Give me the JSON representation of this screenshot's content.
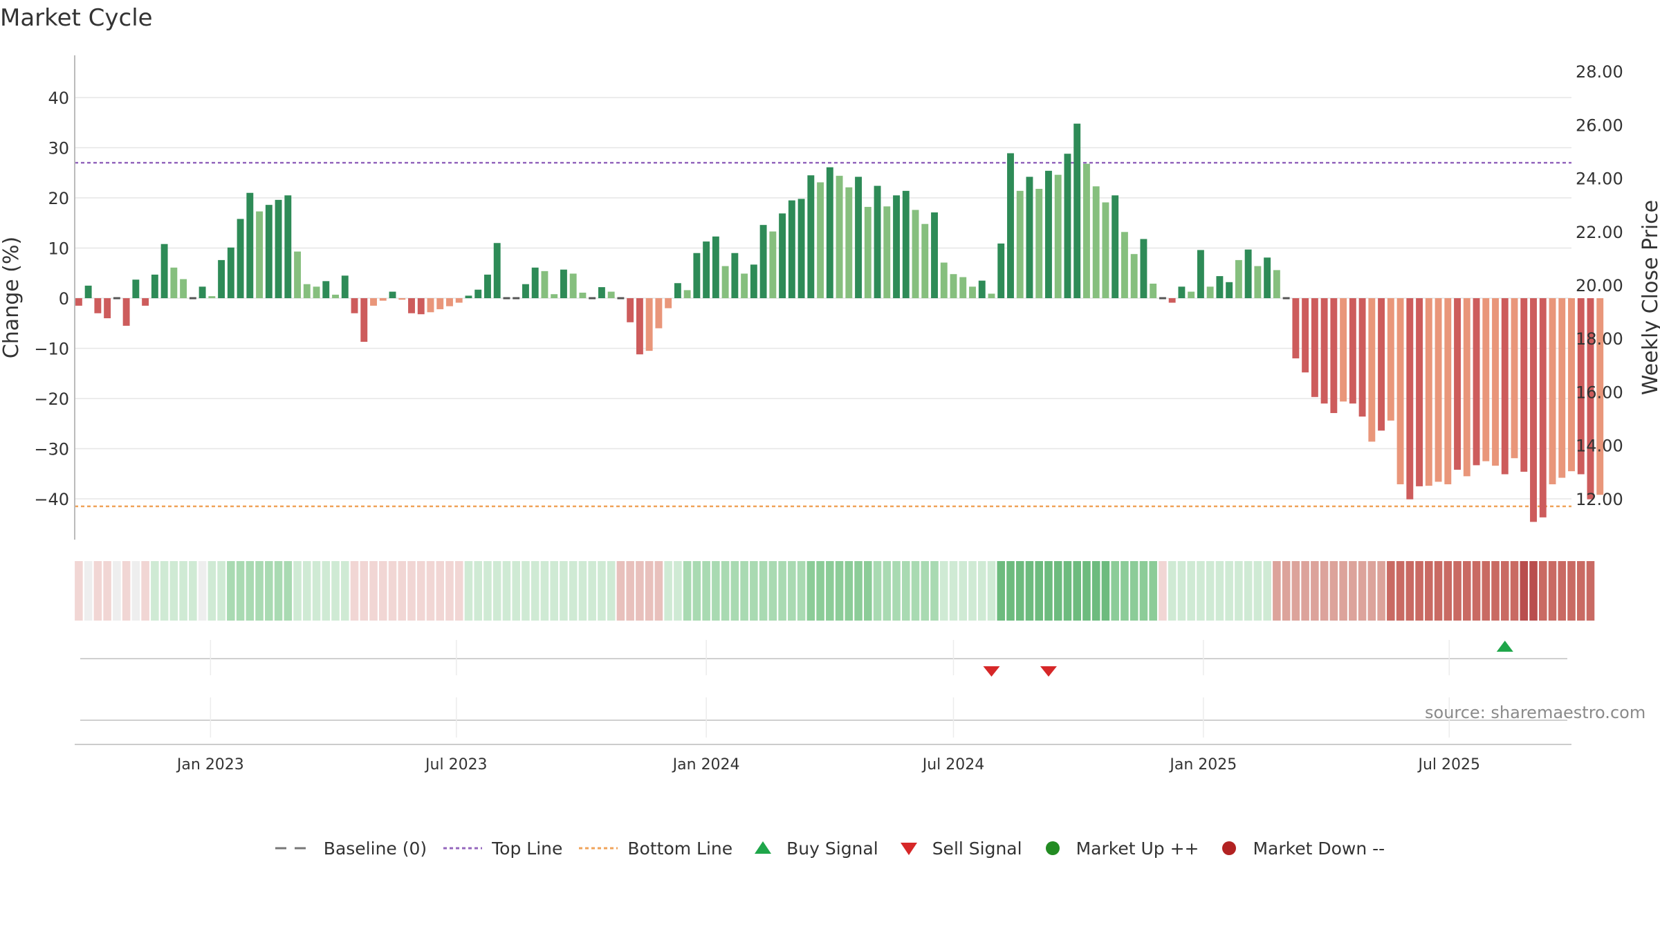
{
  "title": "Market Cycle",
  "source": "source: sharemaestro.com",
  "colors": {
    "up_strong": "#2e8b57",
    "up_light": "#86bf7e",
    "down_strong": "#cd5c5c",
    "down_light": "#e9967a",
    "top_line": "#9467bd",
    "bottom_line": "#f0a35a",
    "buy": "#1fa64a",
    "sell": "#d62728",
    "market_up": "#228b22",
    "market_down": "#b22222"
  },
  "legend": {
    "baseline": "Baseline (0)",
    "top_line": "Top Line",
    "bottom_line": "Bottom Line",
    "buy": "Buy Signal",
    "sell": "Sell Signal",
    "market_up": "Market Up ++",
    "market_down": "Market Down --"
  },
  "chart_data": {
    "type": "bar",
    "ylabel": "Change (%)",
    "y2label": "Weekly Close Price",
    "ylim": [
      -48,
      48
    ],
    "y2lim": [
      11.0,
      28.7
    ],
    "yticks": [
      "40",
      "30",
      "20",
      "10",
      "0",
      "−10",
      "−20",
      "−30",
      "−40"
    ],
    "yticks_values": [
      40,
      30,
      20,
      10,
      0,
      -10,
      -20,
      -30,
      -40
    ],
    "y2ticks": [
      "28.00",
      "26.00",
      "24.00",
      "22.00",
      "20.00",
      "18.00",
      "16.00",
      "14.00",
      "12.00"
    ],
    "y2ticks_values": [
      28,
      26,
      24,
      22,
      20,
      18,
      16,
      14,
      12
    ],
    "top_line": 27,
    "bottom_line": -41.5,
    "x_start": "2022-09-26",
    "x_step_days": 7,
    "xlim": [
      "2022-09-23",
      "2025-09-29"
    ],
    "xticks": [
      {
        "label": "Jan 2023",
        "date": "2023-01-01"
      },
      {
        "label": "Jul 2023",
        "date": "2023-07-01"
      },
      {
        "label": "Jan 2024",
        "date": "2024-01-01"
      },
      {
        "label": "Jul 2024",
        "date": "2024-07-01"
      },
      {
        "label": "Jan 2025",
        "date": "2025-01-01"
      },
      {
        "label": "Jul 2025",
        "date": "2025-07-01"
      }
    ],
    "values": [
      -1.5,
      2.5,
      -3,
      -4,
      0,
      -5.5,
      3.7,
      -1.5,
      4.7,
      10.8,
      6.1,
      3.8,
      0,
      2.3,
      0.4,
      7.6,
      10.1,
      15.8,
      21,
      17.3,
      18.6,
      19.6,
      20.5,
      9.3,
      2.8,
      2.3,
      3.4,
      0.7,
      4.5,
      -3,
      -8.7,
      -1.5,
      -0.5,
      1.3,
      -0.3,
      -3,
      -3.2,
      -2.8,
      -2.2,
      -1.6,
      -0.9,
      0.5,
      1.7,
      4.7,
      11,
      0,
      0,
      2.8,
      6.1,
      5.4,
      0.8,
      5.7,
      4.9,
      1.1,
      0,
      2.2,
      1.3,
      0,
      -4.8,
      -11.2,
      -10.5,
      -6,
      -2,
      3,
      1.6,
      9,
      11.3,
      12.3,
      6.4,
      9,
      4.9,
      6.7,
      14.6,
      13.3,
      16.9,
      19.5,
      19.8,
      24.5,
      23.1,
      26.1,
      24.4,
      22.1,
      24.2,
      18.2,
      22.4,
      18.3,
      20.5,
      21.4,
      17.6,
      14.8,
      17.1,
      7.1,
      4.8,
      4.2,
      2.3,
      3.5,
      0.9,
      10.9,
      28.9,
      21.4,
      24.2,
      21.8,
      25.4,
      24.6,
      28.8,
      34.8,
      26.8,
      22.3,
      19.1,
      20.5,
      13.2,
      8.8,
      11.8,
      2.9,
      0,
      -0.9,
      2.3,
      1.3,
      9.6,
      2.3,
      4.4,
      3.2,
      7.6,
      9.7,
      6.4,
      8.1,
      5.6,
      0,
      -12,
      -14.8,
      -19.7,
      -21,
      -22.9,
      -20.6,
      -21,
      -23.6,
      -28.6,
      -26.4,
      -24.4,
      -37.1,
      -40.1,
      -37.5,
      -37.4,
      -36.6,
      -37.1,
      -34.2,
      -35.5,
      -33.3,
      -32.5,
      -33.4,
      -35.1,
      -31.9,
      -34.6,
      -44.6,
      -43.7,
      -37.1,
      -35.8,
      -34.5,
      -35.1,
      -40.1,
      -39.2
    ],
    "strong": [
      1,
      1,
      1,
      1,
      0,
      1,
      1,
      1,
      1,
      1,
      0,
      0,
      0,
      1,
      0,
      1,
      1,
      1,
      1,
      0,
      1,
      1,
      1,
      0,
      0,
      0,
      1,
      0,
      1,
      1,
      1,
      0,
      0,
      1,
      0,
      1,
      1,
      0,
      0,
      0,
      0,
      1,
      1,
      1,
      1,
      0,
      0,
      1,
      1,
      0,
      0,
      1,
      0,
      0,
      0,
      1,
      0,
      0,
      1,
      1,
      0,
      0,
      0,
      1,
      0,
      1,
      1,
      1,
      0,
      1,
      0,
      1,
      1,
      0,
      1,
      1,
      1,
      1,
      0,
      1,
      0,
      0,
      1,
      0,
      1,
      0,
      1,
      1,
      0,
      0,
      1,
      0,
      0,
      0,
      0,
      1,
      0,
      1,
      1,
      0,
      1,
      0,
      1,
      0,
      1,
      1,
      0,
      0,
      0,
      1,
      0,
      0,
      1,
      0,
      0,
      1,
      1,
      0,
      1,
      0,
      1,
      1,
      0,
      1,
      0,
      1,
      0,
      1,
      1,
      1,
      1,
      1,
      1,
      0,
      1,
      1,
      0,
      1,
      0,
      0,
      1,
      1,
      0,
      0,
      0,
      1,
      0,
      1,
      0,
      0,
      1,
      0,
      1,
      1,
      1,
      0,
      0,
      0,
      1,
      1,
      0
    ],
    "heat_levels": [
      -1,
      0,
      -1,
      -1,
      0,
      -1,
      0,
      -1,
      1,
      1,
      1,
      1,
      1,
      0,
      1,
      1,
      2,
      2,
      2,
      2,
      2,
      2,
      2,
      1,
      1,
      1,
      1,
      1,
      1,
      -1,
      -1,
      -1,
      -1,
      -1,
      -1,
      -1,
      -1,
      -1,
      -1,
      -1,
      -1,
      1,
      1,
      1,
      1,
      1,
      1,
      1,
      1,
      1,
      1,
      1,
      1,
      1,
      1,
      1,
      1,
      -2,
      -2,
      -2,
      -2,
      -2,
      1,
      1,
      2,
      2,
      2,
      2,
      2,
      2,
      2,
      2,
      2,
      2,
      2,
      2,
      2,
      3,
      3,
      3,
      3,
      3,
      3,
      3,
      2,
      2,
      2,
      2,
      2,
      2,
      2,
      1,
      1,
      1,
      1,
      1,
      1,
      4,
      4,
      4,
      4,
      4,
      4,
      4,
      4,
      4,
      4,
      4,
      4,
      3,
      3,
      3,
      3,
      3,
      -1,
      1,
      1,
      1,
      1,
      1,
      1,
      1,
      1,
      1,
      1,
      1,
      -3,
      -3,
      -3,
      -3,
      -3,
      -3,
      -3,
      -3,
      -3,
      -3,
      -3,
      -3,
      -4,
      -4,
      -4,
      -4,
      -4,
      -4,
      -4,
      -4,
      -4,
      -4,
      -4,
      -4,
      -4,
      -4,
      -5,
      -5,
      -4,
      -4,
      -4,
      -4,
      -4,
      -4
    ],
    "buy_signals": [
      "2025-08-11"
    ],
    "sell_signals": [
      "2024-07-29",
      "2024-09-09"
    ],
    "market_up": [],
    "market_down": []
  }
}
